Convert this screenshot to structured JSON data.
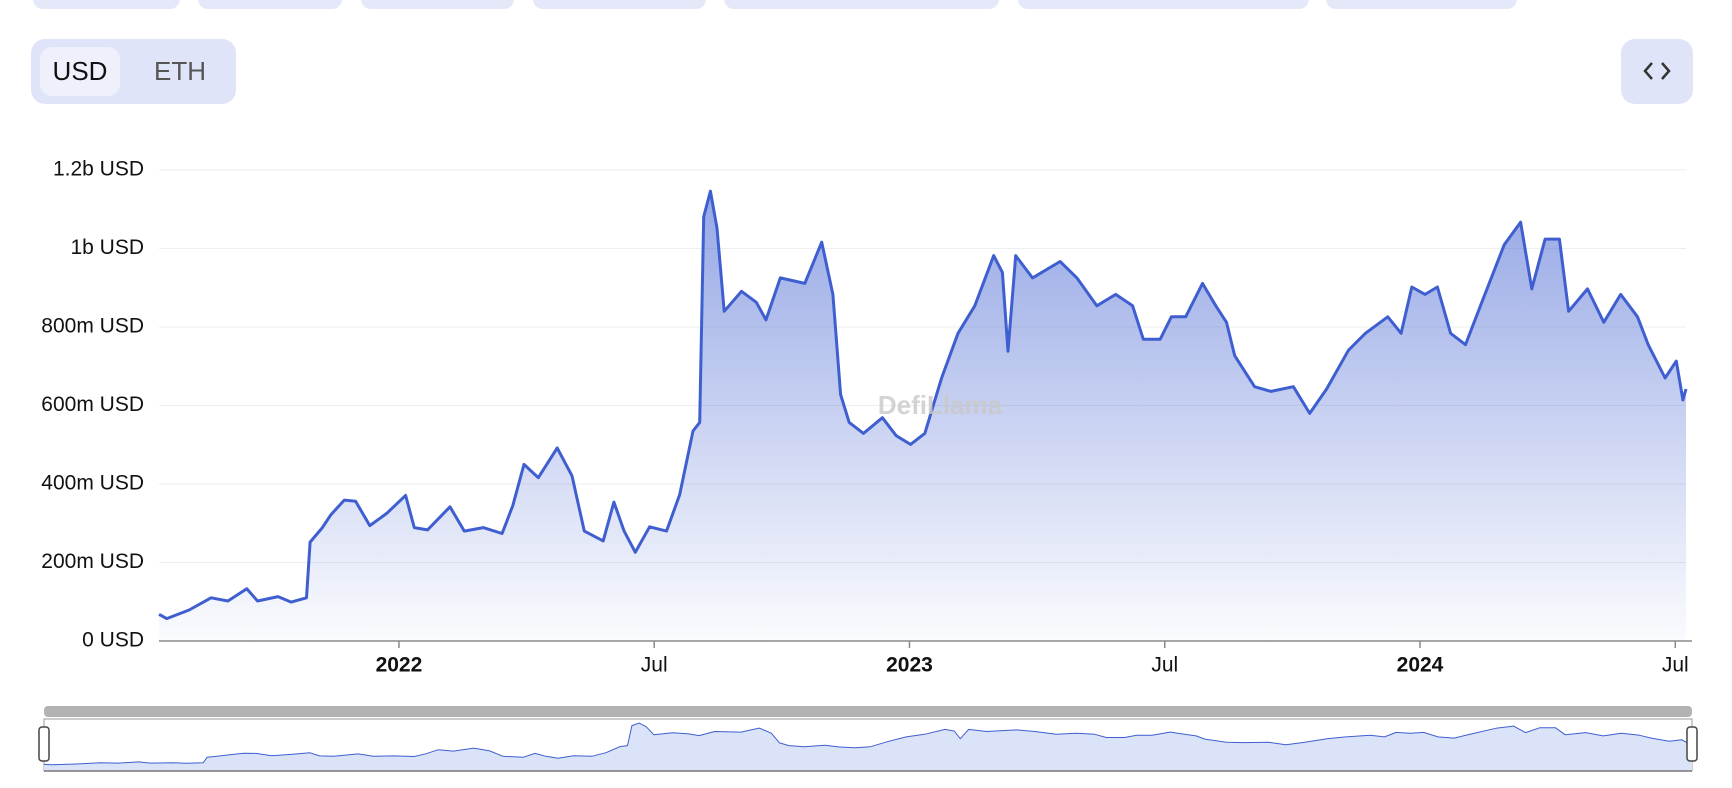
{
  "toggle": [
    "USD",
    "ETH"
  ],
  "watermark": "DefiLlama",
  "chart_data": {
    "type": "area",
    "x": [
      2021.53,
      2021.545,
      2021.589,
      2021.632,
      2021.665,
      2021.702,
      2021.723,
      2021.763,
      2021.789,
      2021.819,
      2021.826,
      2021.85,
      2021.867,
      2021.893,
      2021.915,
      2021.943,
      2021.976,
      2022.013,
      2022.03,
      2022.056,
      2022.1,
      2022.128,
      2022.165,
      2022.202,
      2022.223,
      2022.245,
      2022.273,
      2022.31,
      2022.339,
      2022.363,
      2022.4,
      2022.421,
      2022.441,
      2022.463,
      2022.491,
      2022.524,
      2022.55,
      2022.576,
      2022.589,
      2022.597,
      2022.61,
      2022.623,
      2022.637,
      2022.671,
      2022.7,
      2022.719,
      2022.747,
      2022.795,
      2022.828,
      2022.85,
      2022.865,
      2022.882,
      2022.91,
      2022.947,
      2022.974,
      2023.002,
      2023.03,
      2023.063,
      2023.095,
      2023.128,
      2023.165,
      2023.182,
      2023.193,
      2023.208,
      2023.241,
      2023.295,
      2023.328,
      2023.367,
      2023.404,
      2023.437,
      2023.458,
      2023.491,
      2023.513,
      2023.541,
      2023.574,
      2023.6,
      2023.621,
      2023.637,
      2023.676,
      2023.708,
      2023.752,
      2023.784,
      2023.817,
      2023.86,
      2023.893,
      2023.937,
      2023.963,
      2023.984,
      2024.01,
      2024.034,
      2024.06,
      2024.089,
      2024.121,
      2024.165,
      2024.197,
      2024.219,
      2024.245,
      2024.273,
      2024.291,
      2024.328,
      2024.36,
      2024.393,
      2024.426,
      2024.447,
      2024.48,
      2024.502,
      2024.515,
      2024.521
    ],
    "series": [
      {
        "color": "#3f5fd0",
        "values": [
          68000000,
          57000000,
          79000000,
          110000000,
          102000000,
          133000000,
          102000000,
          113000000,
          99000000,
          110000000,
          252000000,
          289000000,
          322000000,
          359000000,
          356000000,
          294000000,
          325000000,
          371000000,
          289000000,
          283000000,
          342000000,
          280000000,
          289000000,
          274000000,
          345000000,
          450000000,
          416000000,
          492000000,
          421000000,
          280000000,
          255000000,
          354000000,
          280000000,
          226000000,
          291000000,
          280000000,
          373000000,
          535000000,
          557000000,
          1081000000,
          1146000000,
          1052000000,
          840000000,
          891000000,
          863000000,
          818000000,
          925000000,
          911000000,
          1016000000,
          883000000,
          628000000,
          557000000,
          529000000,
          569000000,
          523000000,
          501000000,
          529000000,
          670000000,
          784000000,
          854000000,
          982000000,
          939000000,
          738000000,
          982000000,
          925000000,
          967000000,
          925000000,
          854000000,
          883000000,
          854000000,
          769000000,
          769000000,
          826000000,
          826000000,
          911000000,
          854000000,
          812000000,
          727000000,
          648000000,
          636000000,
          648000000,
          580000000,
          642000000,
          741000000,
          784000000,
          826000000,
          784000000,
          902000000,
          883000000,
          902000000,
          784000000,
          755000000,
          863000000,
          1010000000,
          1067000000,
          897000000,
          1024000000,
          1024000000,
          840000000,
          897000000,
          812000000,
          883000000,
          826000000,
          755000000,
          670000000,
          713000000,
          614000000,
          642000000
        ]
      }
    ],
    "xlim": [
      2021.53,
      2024.521
    ],
    "xticks": [
      {
        "value": 2022,
        "label": "2022"
      },
      {
        "value": 2022.5,
        "label": "Jul"
      },
      {
        "value": 2023,
        "label": "2023"
      },
      {
        "value": 2023.5,
        "label": "Jul"
      },
      {
        "value": 2024,
        "label": "2024"
      },
      {
        "value": 2024.5,
        "label": "Jul"
      }
    ],
    "ylim": [
      0,
      1200000000
    ],
    "yticks": [
      {
        "value": 0,
        "label": "0 USD"
      },
      {
        "value": 200000000,
        "label": "200m USD"
      },
      {
        "value": 400000000,
        "label": "400m USD"
      },
      {
        "value": 600000000,
        "label": "600m USD"
      },
      {
        "value": 800000000,
        "label": "800m USD"
      },
      {
        "value": 1000000000,
        "label": "1b USD"
      },
      {
        "value": 1200000000,
        "label": "1.2b USD"
      }
    ],
    "grid": true
  }
}
